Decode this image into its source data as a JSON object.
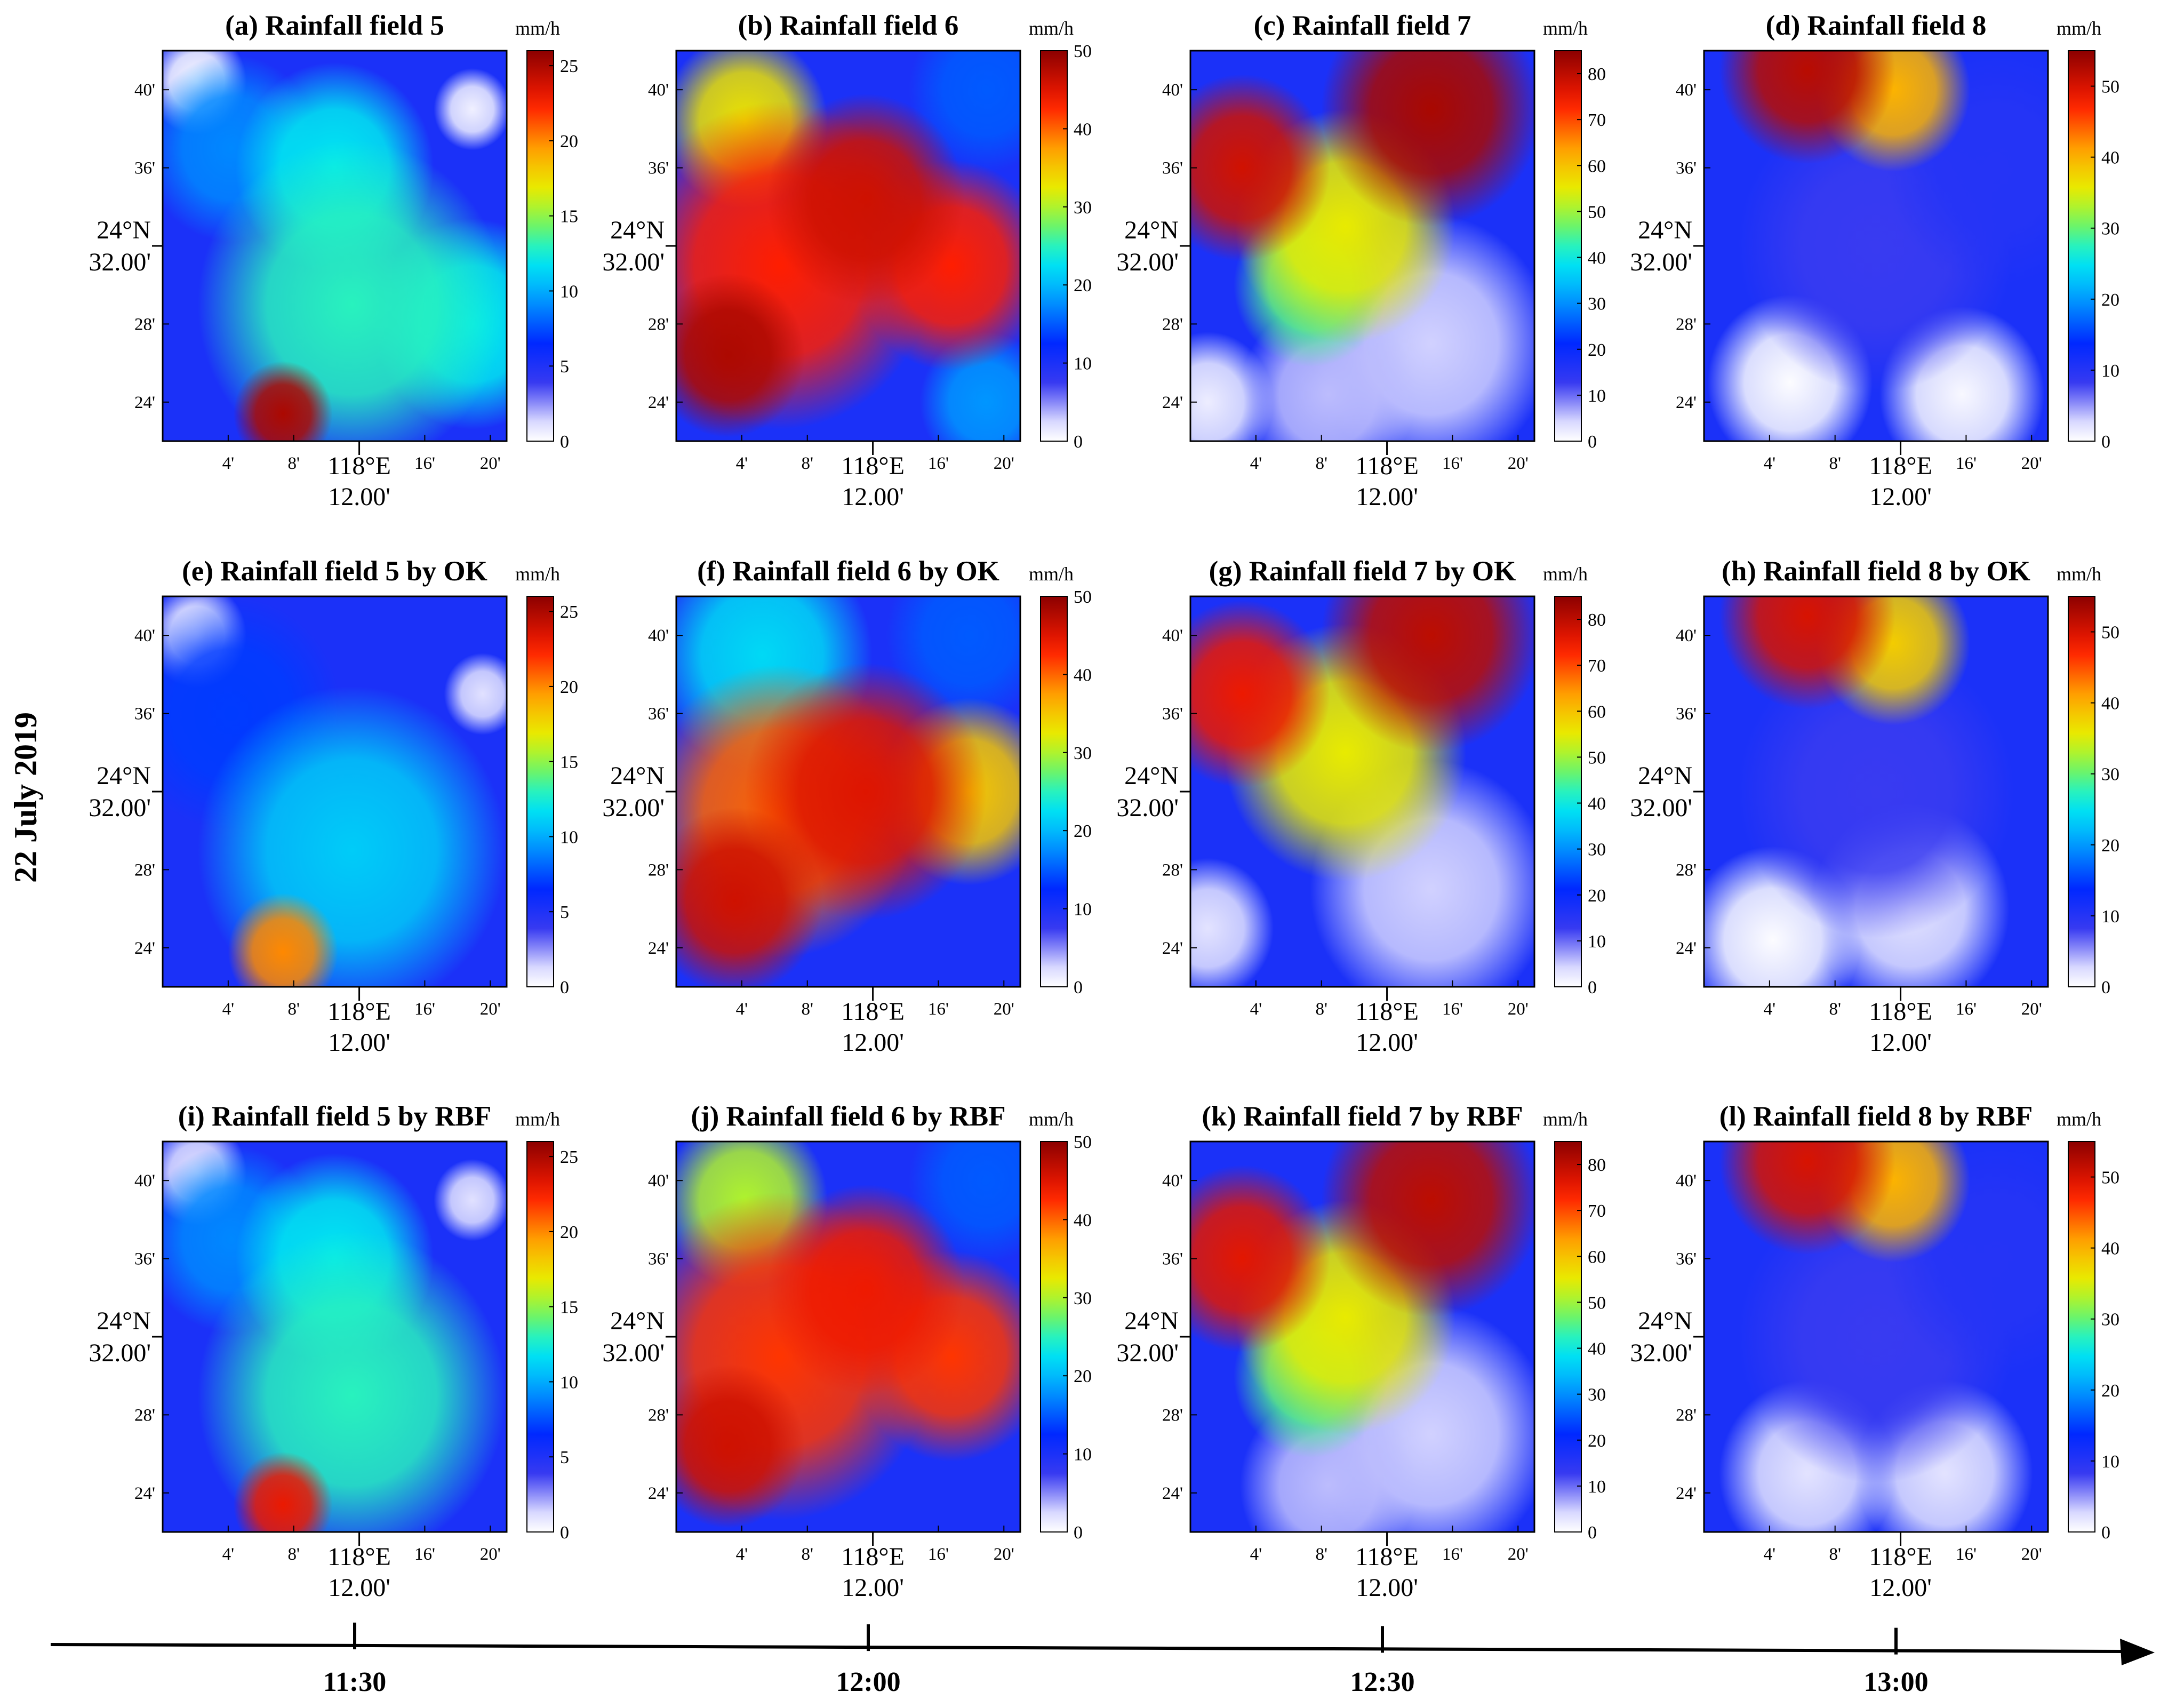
{
  "figure": {
    "date_label": "22 July 2019",
    "unit": "mm/h",
    "lon_ticks": [
      "4'",
      "8'",
      "16'",
      "20'"
    ],
    "lon_center": [
      "118°E",
      "12.00'"
    ],
    "lat_ticks": [
      "40'",
      "36'",
      "28'",
      "24'"
    ],
    "lat_center": [
      "24°N",
      "32.00'"
    ],
    "time_axis": [
      "11:30",
      "12:00",
      "12:30",
      "13:00"
    ]
  },
  "chart_data": [
    {
      "type": "heatmap",
      "id": "a",
      "title": "(a) Rainfall field 5",
      "colorbar": {
        "ticks": [
          0,
          5,
          10,
          15,
          20,
          25
        ],
        "max": 26
      },
      "blobs": [
        {
          "lon": 0.35,
          "lat": 0.07,
          "v": 25,
          "r": 0.09
        },
        {
          "lon": 0.55,
          "lat": 0.35,
          "v": 13,
          "r": 0.28
        },
        {
          "lon": 0.5,
          "lat": 0.7,
          "v": 12,
          "r": 0.18
        },
        {
          "lon": 0.2,
          "lat": 0.75,
          "v": 9,
          "r": 0.16
        },
        {
          "lon": 0.9,
          "lat": 0.3,
          "v": 12,
          "r": 0.18
        },
        {
          "lon": 0.1,
          "lat": 0.92,
          "v": 0.2,
          "r": 0.09
        },
        {
          "lon": 0.9,
          "lat": 0.85,
          "v": 0.5,
          "r": 0.07
        },
        {
          "lon": 0.3,
          "lat": 0.8,
          "v": 4,
          "r": 0.08
        }
      ]
    },
    {
      "type": "heatmap",
      "id": "b",
      "title": "(b) Rainfall field 6",
      "colorbar": {
        "ticks": [
          0,
          10,
          20,
          30,
          40,
          50
        ],
        "max": 50
      },
      "blobs": [
        {
          "lon": 0.15,
          "lat": 0.22,
          "v": 48,
          "r": 0.14
        },
        {
          "lon": 0.3,
          "lat": 0.45,
          "v": 43,
          "r": 0.28
        },
        {
          "lon": 0.55,
          "lat": 0.62,
          "v": 46,
          "r": 0.18
        },
        {
          "lon": 0.8,
          "lat": 0.45,
          "v": 43,
          "r": 0.18
        },
        {
          "lon": 0.2,
          "lat": 0.82,
          "v": 33,
          "r": 0.15
        },
        {
          "lon": 0.9,
          "lat": 0.9,
          "v": 15,
          "r": 0.14
        },
        {
          "lon": 0.9,
          "lat": 0.1,
          "v": 18,
          "r": 0.12
        }
      ]
    },
    {
      "type": "heatmap",
      "id": "c",
      "title": "(c) Rainfall field 7",
      "colorbar": {
        "ticks": [
          0,
          10,
          20,
          30,
          40,
          50,
          60,
          70,
          80
        ],
        "max": 85
      },
      "blobs": [
        {
          "lon": 0.15,
          "lat": 0.7,
          "v": 78,
          "r": 0.16
        },
        {
          "lon": 0.7,
          "lat": 0.85,
          "v": 82,
          "r": 0.2
        },
        {
          "lon": 0.45,
          "lat": 0.55,
          "v": 55,
          "r": 0.2
        },
        {
          "lon": 0.35,
          "lat": 0.4,
          "v": 45,
          "r": 0.14
        },
        {
          "lon": 0.7,
          "lat": 0.25,
          "v": 5,
          "r": 0.22
        },
        {
          "lon": 0.05,
          "lat": 0.1,
          "v": 2,
          "r": 0.12
        },
        {
          "lon": 0.4,
          "lat": 0.12,
          "v": 6,
          "r": 0.16
        }
      ]
    },
    {
      "type": "heatmap",
      "id": "d",
      "title": "(d) Rainfall field 8",
      "colorbar": {
        "ticks": [
          0,
          10,
          20,
          30,
          40,
          50
        ],
        "max": 55
      },
      "blobs": [
        {
          "lon": 0.3,
          "lat": 0.95,
          "v": 52,
          "r": 0.16
        },
        {
          "lon": 0.55,
          "lat": 0.9,
          "v": 40,
          "r": 0.14
        },
        {
          "lon": 0.85,
          "lat": 0.7,
          "v": 10,
          "r": 0.2
        },
        {
          "lon": 0.5,
          "lat": 0.5,
          "v": 8,
          "r": 0.25
        },
        {
          "lon": 0.25,
          "lat": 0.15,
          "v": 0.2,
          "r": 0.15
        },
        {
          "lon": 0.75,
          "lat": 0.12,
          "v": 0.5,
          "r": 0.15
        }
      ]
    },
    {
      "type": "heatmap",
      "id": "e",
      "title": "(e) Rainfall field 5 by OK",
      "colorbar": {
        "ticks": [
          0,
          5,
          10,
          15,
          20,
          25
        ],
        "max": 26
      },
      "blobs": [
        {
          "lon": 0.35,
          "lat": 0.09,
          "v": 20,
          "r": 0.1
        },
        {
          "lon": 0.55,
          "lat": 0.35,
          "v": 11,
          "r": 0.28
        },
        {
          "lon": 0.2,
          "lat": 0.7,
          "v": 7,
          "r": 0.2
        },
        {
          "lon": 0.1,
          "lat": 0.9,
          "v": 0.5,
          "r": 0.09
        },
        {
          "lon": 0.93,
          "lat": 0.75,
          "v": 1,
          "r": 0.07
        }
      ]
    },
    {
      "type": "heatmap",
      "id": "f",
      "title": "(f) Rainfall field 6 by OK",
      "colorbar": {
        "ticks": [
          0,
          10,
          20,
          30,
          40,
          50
        ],
        "max": 50
      },
      "blobs": [
        {
          "lon": 0.17,
          "lat": 0.22,
          "v": 46,
          "r": 0.16
        },
        {
          "lon": 0.55,
          "lat": 0.5,
          "v": 45,
          "r": 0.22
        },
        {
          "lon": 0.3,
          "lat": 0.45,
          "v": 40,
          "r": 0.25
        },
        {
          "lon": 0.85,
          "lat": 0.5,
          "v": 35,
          "r": 0.16
        },
        {
          "lon": 0.25,
          "lat": 0.85,
          "v": 22,
          "r": 0.2
        },
        {
          "lon": 0.85,
          "lat": 0.9,
          "v": 15,
          "r": 0.15
        }
      ]
    },
    {
      "type": "heatmap",
      "id": "g",
      "title": "(g) Rainfall field 7 by OK",
      "colorbar": {
        "ticks": [
          0,
          10,
          20,
          30,
          40,
          50,
          60,
          70,
          80
        ],
        "max": 85
      },
      "blobs": [
        {
          "lon": 0.15,
          "lat": 0.75,
          "v": 75,
          "r": 0.16
        },
        {
          "lon": 0.7,
          "lat": 0.9,
          "v": 80,
          "r": 0.2
        },
        {
          "lon": 0.45,
          "lat": 0.6,
          "v": 55,
          "r": 0.22
        },
        {
          "lon": 0.7,
          "lat": 0.25,
          "v": 5,
          "r": 0.22
        },
        {
          "lon": 0.05,
          "lat": 0.15,
          "v": 3,
          "r": 0.12
        }
      ]
    },
    {
      "type": "heatmap",
      "id": "h",
      "title": "(h) Rainfall field 8 by OK",
      "colorbar": {
        "ticks": [
          0,
          10,
          20,
          30,
          40,
          50
        ],
        "max": 55
      },
      "blobs": [
        {
          "lon": 0.3,
          "lat": 0.95,
          "v": 50,
          "r": 0.16
        },
        {
          "lon": 0.55,
          "lat": 0.88,
          "v": 38,
          "r": 0.14
        },
        {
          "lon": 0.5,
          "lat": 0.5,
          "v": 8,
          "r": 0.25
        },
        {
          "lon": 0.2,
          "lat": 0.12,
          "v": 0.2,
          "r": 0.16
        },
        {
          "lon": 0.6,
          "lat": 0.2,
          "v": 2,
          "r": 0.18
        }
      ]
    },
    {
      "type": "heatmap",
      "id": "i",
      "title": "(i) Rainfall field 5 by RBF",
      "colorbar": {
        "ticks": [
          0,
          5,
          10,
          15,
          20,
          25
        ],
        "max": 26
      },
      "blobs": [
        {
          "lon": 0.35,
          "lat": 0.07,
          "v": 23,
          "r": 0.09
        },
        {
          "lon": 0.55,
          "lat": 0.35,
          "v": 13,
          "r": 0.28
        },
        {
          "lon": 0.5,
          "lat": 0.7,
          "v": 12,
          "r": 0.18
        },
        {
          "lon": 0.2,
          "lat": 0.75,
          "v": 9,
          "r": 0.16
        },
        {
          "lon": 0.1,
          "lat": 0.92,
          "v": 1,
          "r": 0.09
        },
        {
          "lon": 0.9,
          "lat": 0.85,
          "v": 1,
          "r": 0.07
        }
      ]
    },
    {
      "type": "heatmap",
      "id": "j",
      "title": "(j) Rainfall field 6 by RBF",
      "colorbar": {
        "ticks": [
          0,
          10,
          20,
          30,
          40,
          50
        ],
        "max": 50
      },
      "blobs": [
        {
          "lon": 0.15,
          "lat": 0.22,
          "v": 46,
          "r": 0.14
        },
        {
          "lon": 0.3,
          "lat": 0.45,
          "v": 42,
          "r": 0.28
        },
        {
          "lon": 0.55,
          "lat": 0.62,
          "v": 44,
          "r": 0.18
        },
        {
          "lon": 0.8,
          "lat": 0.45,
          "v": 42,
          "r": 0.18
        },
        {
          "lon": 0.2,
          "lat": 0.85,
          "v": 30,
          "r": 0.15
        },
        {
          "lon": 0.9,
          "lat": 0.9,
          "v": 15,
          "r": 0.14
        }
      ]
    },
    {
      "type": "heatmap",
      "id": "k",
      "title": "(k) Rainfall field 7 by RBF",
      "colorbar": {
        "ticks": [
          0,
          10,
          20,
          30,
          40,
          50,
          60,
          70,
          80
        ],
        "max": 85
      },
      "blobs": [
        {
          "lon": 0.15,
          "lat": 0.7,
          "v": 76,
          "r": 0.16
        },
        {
          "lon": 0.7,
          "lat": 0.85,
          "v": 80,
          "r": 0.2
        },
        {
          "lon": 0.45,
          "lat": 0.55,
          "v": 55,
          "r": 0.2
        },
        {
          "lon": 0.35,
          "lat": 0.4,
          "v": 45,
          "r": 0.14
        },
        {
          "lon": 0.7,
          "lat": 0.25,
          "v": 5,
          "r": 0.22
        },
        {
          "lon": 0.4,
          "lat": 0.12,
          "v": 6,
          "r": 0.16
        }
      ]
    },
    {
      "type": "heatmap",
      "id": "l",
      "title": "(l) Rainfall field 8 by RBF",
      "colorbar": {
        "ticks": [
          0,
          10,
          20,
          30,
          40,
          50
        ],
        "max": 55
      },
      "blobs": [
        {
          "lon": 0.3,
          "lat": 0.95,
          "v": 50,
          "r": 0.16
        },
        {
          "lon": 0.55,
          "lat": 0.9,
          "v": 40,
          "r": 0.14
        },
        {
          "lon": 0.85,
          "lat": 0.7,
          "v": 10,
          "r": 0.2
        },
        {
          "lon": 0.5,
          "lat": 0.5,
          "v": 8,
          "r": 0.25
        },
        {
          "lon": 0.3,
          "lat": 0.15,
          "v": 2,
          "r": 0.16
        },
        {
          "lon": 0.7,
          "lat": 0.15,
          "v": 2,
          "r": 0.16
        }
      ]
    }
  ]
}
